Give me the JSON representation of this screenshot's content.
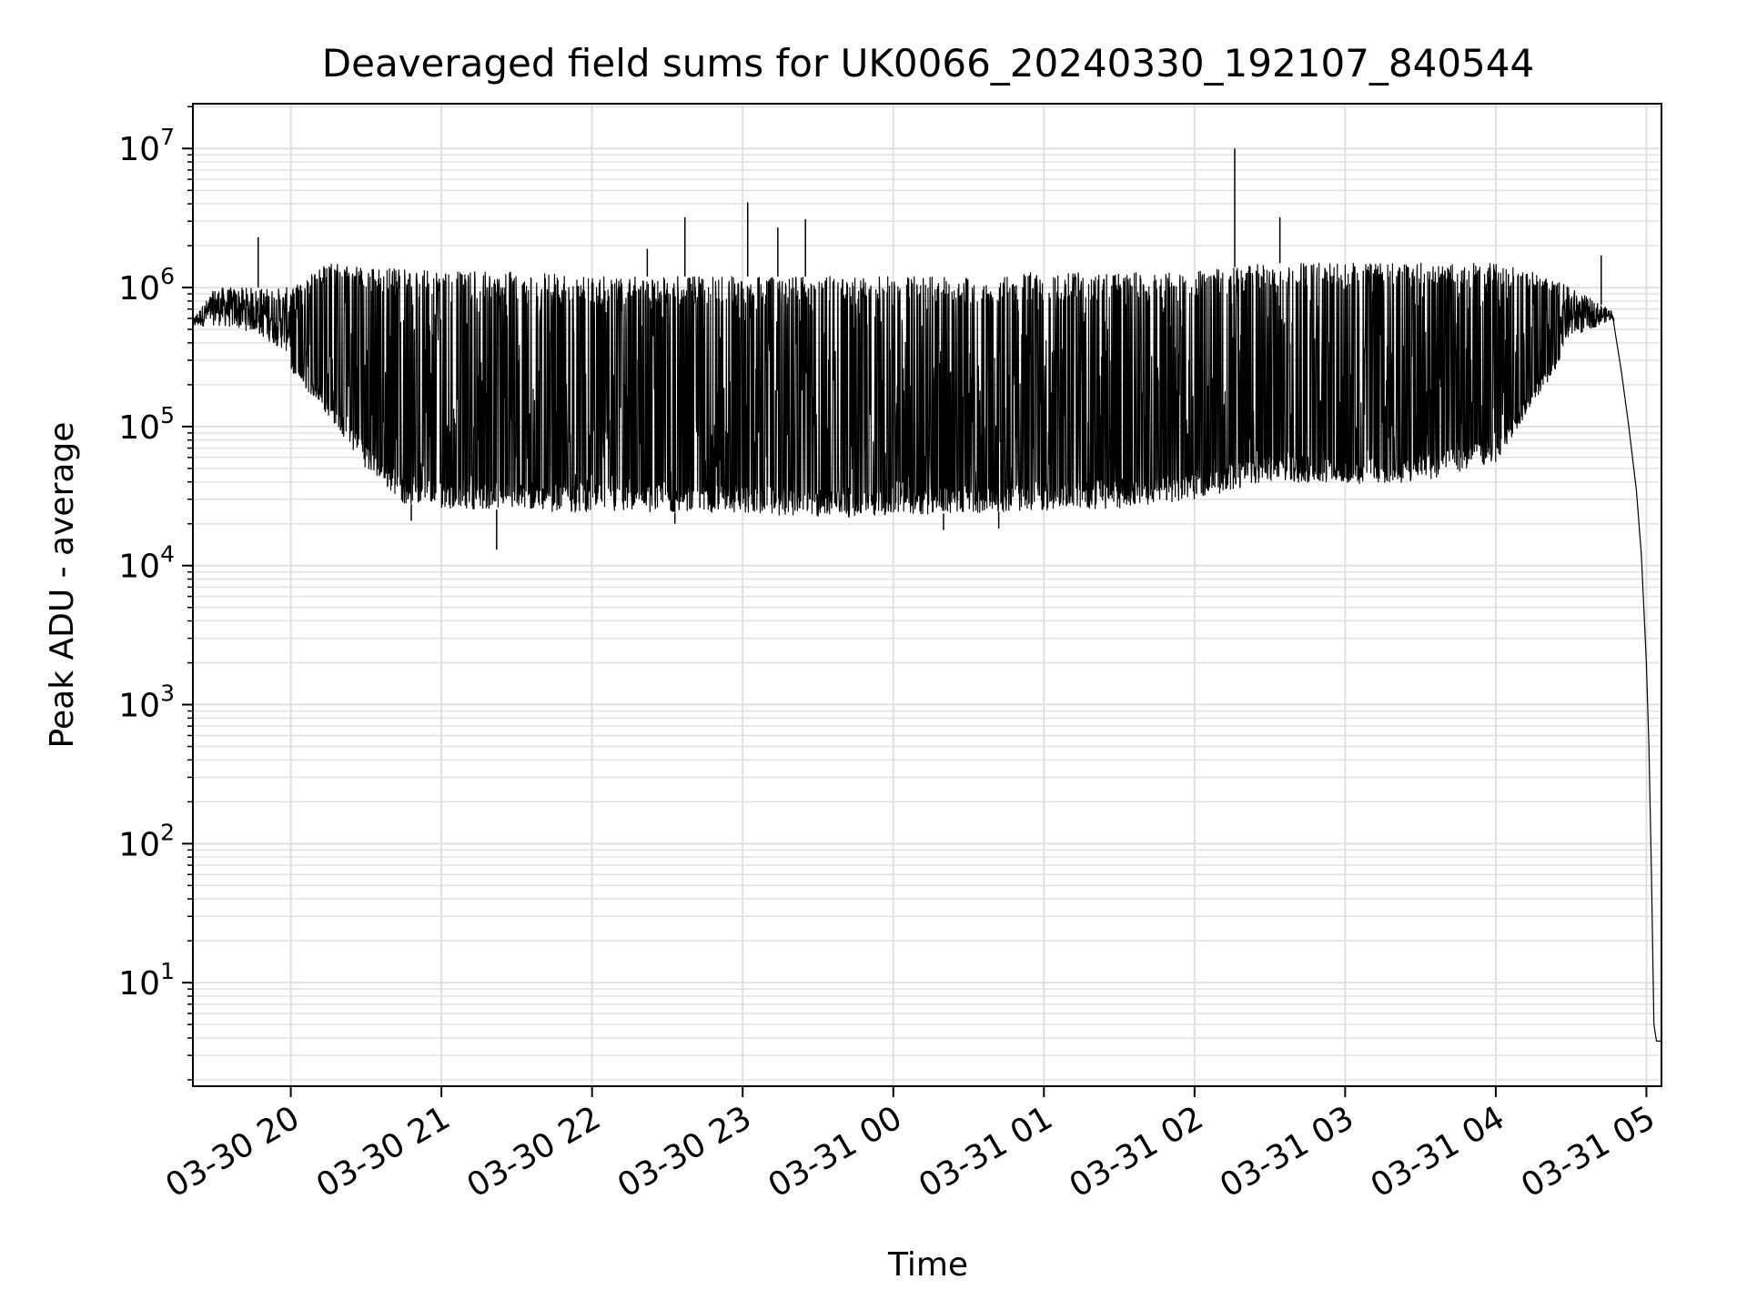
{
  "chart_data": {
    "type": "line",
    "title": "Deaveraged field sums for UK0066_20240330_192107_840544",
    "xlabel": "Time",
    "ylabel": "Peak ADU - average",
    "yscale": "log",
    "ylim": [
      1.8,
      21000000
    ],
    "xlim": [
      "2024-03-30 19:21",
      "2024-03-31 05:06"
    ],
    "grid": true,
    "x_ticks": [
      "03-30 20",
      "03-30 21",
      "03-30 22",
      "03-30 23",
      "03-31 00",
      "03-31 01",
      "03-31 02",
      "03-31 03",
      "03-31 04",
      "03-31 05"
    ],
    "x_tick_times": [
      "2024-03-30 20:00",
      "2024-03-30 21:00",
      "2024-03-30 22:00",
      "2024-03-30 23:00",
      "2024-03-31 00:00",
      "2024-03-31 01:00",
      "2024-03-31 02:00",
      "2024-03-31 03:00",
      "2024-03-31 04:00",
      "2024-03-31 05:00"
    ],
    "y_ticks": [
      {
        "value": 10,
        "base": "10",
        "exp": "1"
      },
      {
        "value": 100,
        "base": "10",
        "exp": "2"
      },
      {
        "value": 1000,
        "base": "10",
        "exp": "3"
      },
      {
        "value": 10000,
        "base": "10",
        "exp": "4"
      },
      {
        "value": 100000,
        "base": "10",
        "exp": "5"
      },
      {
        "value": 1000000,
        "base": "10",
        "exp": "6"
      },
      {
        "value": 10000000,
        "base": "10",
        "exp": "7"
      }
    ],
    "line_color": "#000000",
    "grid_color": "#e0e0e0",
    "series": [
      {
        "upper_envelope": [
          [
            "2024-03-30 19:21",
            600000
          ],
          [
            "2024-03-30 19:30",
            1000000
          ],
          [
            "2024-03-30 19:45",
            1000000
          ],
          [
            "2024-03-30 20:00",
            1000000
          ],
          [
            "2024-03-30 20:15",
            1500000
          ],
          [
            "2024-03-30 20:30",
            1400000
          ],
          [
            "2024-03-30 21:00",
            1300000
          ],
          [
            "2024-03-30 21:30",
            1300000
          ],
          [
            "2024-03-30 22:00",
            1200000
          ],
          [
            "2024-03-30 22:30",
            1200000
          ],
          [
            "2024-03-30 23:00",
            1200000
          ],
          [
            "2024-03-30 23:30",
            1200000
          ],
          [
            "2024-03-31 00:00",
            1200000
          ],
          [
            "2024-03-31 00:30",
            1200000
          ],
          [
            "2024-03-31 01:00",
            1300000
          ],
          [
            "2024-03-31 01:30",
            1300000
          ],
          [
            "2024-03-31 02:00",
            1300000
          ],
          [
            "2024-03-31 02:30",
            1500000
          ],
          [
            "2024-03-31 03:00",
            1500000
          ],
          [
            "2024-03-31 03:30",
            1500000
          ],
          [
            "2024-03-31 04:00",
            1500000
          ],
          [
            "2024-03-31 04:15",
            1300000
          ],
          [
            "2024-03-31 04:30",
            1000000
          ],
          [
            "2024-03-31 04:45",
            700000
          ]
        ],
        "lower_envelope": [
          [
            "2024-03-30 19:21",
            500000
          ],
          [
            "2024-03-30 19:45",
            400000
          ],
          [
            "2024-03-30 20:00",
            250000
          ],
          [
            "2024-03-30 20:15",
            120000
          ],
          [
            "2024-03-30 20:30",
            50000
          ],
          [
            "2024-03-30 20:45",
            28000
          ],
          [
            "2024-03-30 21:00",
            26000
          ],
          [
            "2024-03-30 21:30",
            25000
          ],
          [
            "2024-03-30 22:00",
            24000
          ],
          [
            "2024-03-30 22:30",
            24000
          ],
          [
            "2024-03-30 23:00",
            24000
          ],
          [
            "2024-03-30 23:30",
            22000
          ],
          [
            "2024-03-31 00:00",
            23000
          ],
          [
            "2024-03-31 00:30",
            24000
          ],
          [
            "2024-03-31 01:00",
            25000
          ],
          [
            "2024-03-31 01:30",
            26000
          ],
          [
            "2024-03-31 02:00",
            30000
          ],
          [
            "2024-03-31 02:30",
            40000
          ],
          [
            "2024-03-31 03:00",
            38000
          ],
          [
            "2024-03-31 03:30",
            40000
          ],
          [
            "2024-03-31 04:00",
            55000
          ],
          [
            "2024-03-31 04:15",
            150000
          ],
          [
            "2024-03-31 04:30",
            350000
          ],
          [
            "2024-03-31 04:45",
            550000
          ]
        ],
        "spikes": [
          [
            "2024-03-30 19:47",
            2300000
          ],
          [
            "2024-03-30 22:22",
            1900000
          ],
          [
            "2024-03-30 22:37",
            3200000
          ],
          [
            "2024-03-30 23:02",
            4100000
          ],
          [
            "2024-03-30 23:14",
            2700000
          ],
          [
            "2024-03-30 23:25",
            3100000
          ],
          [
            "2024-03-31 02:16",
            10000000
          ],
          [
            "2024-03-31 02:34",
            3200000
          ],
          [
            "2024-03-31 04:42",
            1700000
          ]
        ],
        "dips": [
          [
            "2024-03-30 21:22",
            13000
          ],
          [
            "2024-03-31 00:20",
            18000
          ],
          [
            "2024-03-30 22:33",
            20000
          ],
          [
            "2024-03-30 20:48",
            21000
          ],
          [
            "2024-03-31 00:42",
            18500
          ]
        ],
        "tail": [
          [
            "2024-03-31 04:47",
            550000
          ],
          [
            "2024-03-31 04:50",
            250000
          ],
          [
            "2024-03-31 04:53",
            100000
          ],
          [
            "2024-03-31 04:56",
            35000
          ],
          [
            "2024-03-31 04:58",
            12000
          ],
          [
            "2024-03-31 05:00",
            2000
          ],
          [
            "2024-03-31 05:01",
            500
          ],
          [
            "2024-03-31 05:02",
            60
          ],
          [
            "2024-03-31 05:03",
            5
          ],
          [
            "2024-03-31 05:04",
            3.8
          ],
          [
            "2024-03-31 05:06",
            3.8
          ]
        ]
      }
    ]
  }
}
